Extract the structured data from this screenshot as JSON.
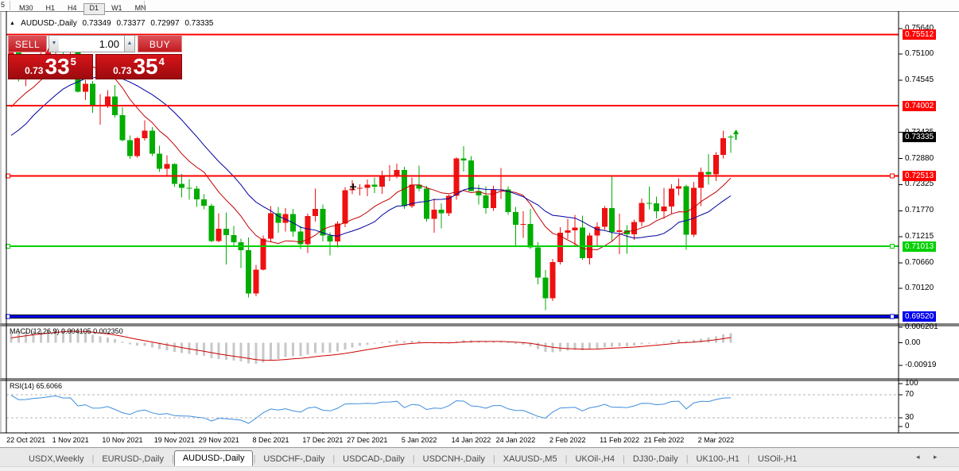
{
  "toolbar": {
    "partial_button": "5",
    "timeframes": [
      "M30",
      "H1",
      "H4",
      "D1",
      "W1",
      "MN"
    ],
    "active_timeframe": "D1"
  },
  "icons": {
    "collapse": "▲",
    "spin_down": "▼",
    "spin_up": "▲",
    "tab_scroll_left": "◂",
    "tab_scroll_right": "▸"
  },
  "chart_header": {
    "symbol": "AUDUSD-,Daily",
    "open": "0.73349",
    "high": "0.73377",
    "low": "0.72997",
    "close": "0.73335"
  },
  "trade_panel": {
    "sell_label": "SELL",
    "buy_label": "BUY",
    "volume": "1.00",
    "bid": "0.73335",
    "ask": "0.73354",
    "bid_small": "0.73",
    "bid_big": "33",
    "bid_sup": "5",
    "ask_small": "0.73",
    "ask_big": "35",
    "ask_sup": "4"
  },
  "price_axis": {
    "ticks": [
      "0.75640",
      "0.75100",
      "0.74545",
      "0.73435",
      "0.72880",
      "0.72325",
      "0.71770",
      "0.71215",
      "0.70660",
      "0.70120"
    ],
    "current_price": "0.73335",
    "current_price_bg": "#000000"
  },
  "macd_pane": {
    "label": "MACD(12,26,9)",
    "value_main": "0.004105",
    "value_signal": "0.002350",
    "axis": [
      "0.006201",
      "0.00",
      "-0.00919"
    ]
  },
  "rsi_pane": {
    "label": "RSI(14)",
    "value": "65.6066",
    "axis": [
      "100",
      "70",
      "30",
      "0"
    ],
    "levels": [
      70,
      30
    ]
  },
  "chart_data": {
    "type": "candlestick",
    "symbol": "AUDUSD",
    "timeframe": "Daily",
    "ylim": [
      0.6952,
      0.7564
    ],
    "colors": {
      "up_candle": "#ee1111",
      "down_candle": "#00ad00",
      "ma_fast": "#c00000",
      "ma_slow": "#0000a0",
      "macd_histogram": "#c8c8c8",
      "macd_signal": "#cc0000",
      "rsi_line": "#3f8edc"
    },
    "hlines": [
      {
        "price": 0.75512,
        "label": "0.75512",
        "color": "#ff0000",
        "thick": false,
        "handles": false
      },
      {
        "price": 0.74002,
        "label": "0.74002",
        "color": "#ff0000",
        "thick": false,
        "handles": false
      },
      {
        "price": 0.72513,
        "label": "0.72513",
        "color": "#ff0000",
        "thick": false,
        "handles": true
      },
      {
        "price": 0.71013,
        "label": "0.71013",
        "color": "#00d000",
        "thick": false,
        "handles": true
      },
      {
        "price": 0.6952,
        "label": "0.69520",
        "color": "#0000ee",
        "thick": true,
        "handles": true
      }
    ],
    "date_ticks": {
      "labels": [
        "22 Oct 2021",
        "1 Nov 2021",
        "10 Nov 2021",
        "19 Nov 2021",
        "29 Nov 2021",
        "8 Dec 2021",
        "17 Dec 2021",
        "27 Dec 2021",
        "5 Jan 2022",
        "14 Jan 2022",
        "24 Jan 2022",
        "2 Feb 2022",
        "11 Feb 2022",
        "21 Feb 2022",
        "2 Mar 2022"
      ],
      "candle_index": [
        2,
        8,
        15,
        22,
        28,
        35,
        42,
        48,
        55,
        62,
        68,
        75,
        82,
        88,
        95
      ]
    },
    "markers": [
      {
        "type": "arrow-up",
        "x_index": 97.7,
        "price": 0.7338,
        "color": "#00ad00"
      },
      {
        "type": "cross",
        "x_index": 46.1,
        "price": 0.7228,
        "color": "#000000"
      }
    ],
    "pre_history_closes_estimated": [
      0.734,
      0.7358,
      0.737,
      0.7355,
      0.733,
      0.73,
      0.7268,
      0.724,
      0.7215,
      0.719,
      0.7168,
      0.7145,
      0.7125,
      0.715,
      0.718,
      0.721,
      0.7245,
      0.728,
      0.731,
      0.734,
      0.7367,
      0.74,
      0.743,
      0.7453,
      0.7442,
      0.7433,
      0.741,
      0.7384,
      0.7369,
      0.7346,
      0.7356,
      0.7323,
      0.7345,
      0.7312,
      0.7268,
      0.7248,
      0.7264,
      0.7225,
      0.717,
      0.723,
      0.7261,
      0.7288,
      0.729,
      0.7362,
      0.7311,
      0.7322,
      0.7373,
      0.735,
      0.7378,
      0.7418,
      0.742,
      0.7414,
      0.7474
    ],
    "candles": [
      [
        "2021-10-20",
        0.7478,
        0.7546,
        0.7472,
        0.7516
      ],
      [
        "2021-10-21",
        0.7516,
        0.754,
        0.7452,
        0.7466
      ],
      [
        "2021-10-22",
        0.7466,
        0.7492,
        0.7442,
        0.7468
      ],
      [
        "2021-10-25",
        0.7468,
        0.7507,
        0.746,
        0.7489
      ],
      [
        "2021-10-26",
        0.7489,
        0.7536,
        0.7482,
        0.75
      ],
      [
        "2021-10-27",
        0.75,
        0.7522,
        0.7487,
        0.7518
      ],
      [
        "2021-10-28",
        0.7518,
        0.7545,
        0.75,
        0.7539
      ],
      [
        "2021-10-29",
        0.7539,
        0.7541,
        0.7496,
        0.7518
      ],
      [
        "2021-11-01",
        0.7518,
        0.7535,
        0.7492,
        0.7521
      ],
      [
        "2021-11-02",
        0.7521,
        0.7527,
        0.7428,
        0.743
      ],
      [
        "2021-11-03",
        0.743,
        0.7455,
        0.7412,
        0.7447
      ],
      [
        "2021-11-04",
        0.7447,
        0.7453,
        0.7385,
        0.74
      ],
      [
        "2021-11-05",
        0.74,
        0.7425,
        0.736,
        0.7402
      ],
      [
        "2021-11-08",
        0.7402,
        0.7433,
        0.7395,
        0.742
      ],
      [
        "2021-11-09",
        0.742,
        0.7444,
        0.7375,
        0.738
      ],
      [
        "2021-11-10",
        0.738,
        0.7397,
        0.7324,
        0.7327
      ],
      [
        "2021-11-11",
        0.7327,
        0.7337,
        0.7287,
        0.7293
      ],
      [
        "2021-11-12",
        0.7293,
        0.7334,
        0.729,
        0.7331
      ],
      [
        "2021-11-15",
        0.7331,
        0.7369,
        0.7326,
        0.7347
      ],
      [
        "2021-11-16",
        0.7347,
        0.7355,
        0.7293,
        0.7298
      ],
      [
        "2021-11-17",
        0.7298,
        0.7315,
        0.7259,
        0.7266
      ],
      [
        "2021-11-18",
        0.7266,
        0.7295,
        0.7252,
        0.7276
      ],
      [
        "2021-11-19",
        0.7276,
        0.7278,
        0.7227,
        0.7234
      ],
      [
        "2021-11-22",
        0.7234,
        0.7255,
        0.7205,
        0.7226
      ],
      [
        "2021-11-23",
        0.7226,
        0.7244,
        0.72,
        0.7224
      ],
      [
        "2021-11-24",
        0.7224,
        0.723,
        0.7185,
        0.7201
      ],
      [
        "2021-11-25",
        0.7201,
        0.7212,
        0.718,
        0.7188
      ],
      [
        "2021-11-26",
        0.7188,
        0.7192,
        0.711,
        0.7113
      ],
      [
        "2021-11-29",
        0.7113,
        0.7172,
        0.711,
        0.7139
      ],
      [
        "2021-11-30",
        0.7139,
        0.7173,
        0.7063,
        0.7125
      ],
      [
        "2021-12-01",
        0.7125,
        0.7145,
        0.71,
        0.711
      ],
      [
        "2021-12-02",
        0.711,
        0.7118,
        0.7055,
        0.7093
      ],
      [
        "2021-12-03",
        0.7093,
        0.712,
        0.6993,
        0.7001
      ],
      [
        "2021-12-06",
        0.7001,
        0.7062,
        0.6995,
        0.7052
      ],
      [
        "2021-12-07",
        0.7052,
        0.7124,
        0.705,
        0.7118
      ],
      [
        "2021-12-08",
        0.7118,
        0.7187,
        0.711,
        0.7172
      ],
      [
        "2021-12-09",
        0.7172,
        0.7185,
        0.713,
        0.7151
      ],
      [
        "2021-12-10",
        0.7151,
        0.7183,
        0.7133,
        0.717
      ],
      [
        "2021-12-13",
        0.717,
        0.7181,
        0.7122,
        0.7133
      ],
      [
        "2021-12-14",
        0.7133,
        0.7145,
        0.7096,
        0.7106
      ],
      [
        "2021-12-15",
        0.7106,
        0.7171,
        0.7087,
        0.7166
      ],
      [
        "2021-12-16",
        0.7166,
        0.7224,
        0.7154,
        0.7181
      ],
      [
        "2021-12-17",
        0.7181,
        0.719,
        0.7112,
        0.7124
      ],
      [
        "2021-12-20",
        0.7124,
        0.7131,
        0.7082,
        0.7112
      ],
      [
        "2021-12-21",
        0.7112,
        0.7155,
        0.7099,
        0.715
      ],
      [
        "2021-12-22",
        0.715,
        0.7227,
        0.7142,
        0.7221
      ],
      [
        "2021-12-23",
        0.7221,
        0.7242,
        0.7212,
        0.7224
      ],
      [
        "2021-12-24",
        0.7224,
        0.7233,
        0.721,
        0.7226
      ],
      [
        "2021-12-27",
        0.7226,
        0.7243,
        0.7208,
        0.7232
      ],
      [
        "2021-12-28",
        0.7232,
        0.7248,
        0.7215,
        0.7228
      ],
      [
        "2021-12-29",
        0.7228,
        0.7262,
        0.7213,
        0.7251
      ],
      [
        "2021-12-30",
        0.7251,
        0.7274,
        0.724,
        0.7253
      ],
      [
        "2021-12-31",
        0.7253,
        0.7277,
        0.7246,
        0.7264
      ],
      [
        "2022-01-03",
        0.7264,
        0.727,
        0.7181,
        0.7187
      ],
      [
        "2022-01-04",
        0.7187,
        0.7248,
        0.7183,
        0.7232
      ],
      [
        "2022-01-05",
        0.7232,
        0.7273,
        0.7218,
        0.7224
      ],
      [
        "2022-01-06",
        0.7224,
        0.723,
        0.7154,
        0.716
      ],
      [
        "2022-01-07",
        0.716,
        0.7203,
        0.713,
        0.7179
      ],
      [
        "2022-01-10",
        0.7179,
        0.7193,
        0.714,
        0.7172
      ],
      [
        "2022-01-11",
        0.7172,
        0.7211,
        0.7166,
        0.7209
      ],
      [
        "2022-01-12",
        0.7209,
        0.7291,
        0.72,
        0.7288
      ],
      [
        "2022-01-13",
        0.7288,
        0.7314,
        0.726,
        0.7284
      ],
      [
        "2022-01-14",
        0.7284,
        0.7293,
        0.7218,
        0.7219
      ],
      [
        "2022-01-17",
        0.7219,
        0.7232,
        0.719,
        0.721
      ],
      [
        "2022-01-18",
        0.721,
        0.7229,
        0.7171,
        0.7183
      ],
      [
        "2022-01-19",
        0.7183,
        0.723,
        0.7177,
        0.7222
      ],
      [
        "2022-01-20",
        0.7222,
        0.7268,
        0.7202,
        0.7222
      ],
      [
        "2022-01-21",
        0.7222,
        0.7229,
        0.7168,
        0.7174
      ],
      [
        "2022-01-24",
        0.7174,
        0.7185,
        0.71,
        0.7147
      ],
      [
        "2022-01-25",
        0.7147,
        0.7176,
        0.7119,
        0.7149
      ],
      [
        "2022-01-26",
        0.7149,
        0.7181,
        0.7096,
        0.7099
      ],
      [
        "2022-01-27",
        0.7099,
        0.711,
        0.7021,
        0.7035
      ],
      [
        "2022-01-28",
        0.7035,
        0.7051,
        0.6966,
        0.6991
      ],
      [
        "2022-01-31",
        0.6991,
        0.7075,
        0.6985,
        0.7068
      ],
      [
        "2022-02-01",
        0.7068,
        0.7142,
        0.7063,
        0.713
      ],
      [
        "2022-02-02",
        0.713,
        0.716,
        0.7117,
        0.7135
      ],
      [
        "2022-02-03",
        0.7135,
        0.7168,
        0.71,
        0.7141
      ],
      [
        "2022-02-04",
        0.7141,
        0.7167,
        0.7073,
        0.7076
      ],
      [
        "2022-02-07",
        0.7076,
        0.713,
        0.7063,
        0.7124
      ],
      [
        "2022-02-08",
        0.7124,
        0.7152,
        0.71,
        0.7143
      ],
      [
        "2022-02-09",
        0.7143,
        0.7187,
        0.7136,
        0.7183
      ],
      [
        "2022-02-10",
        0.7183,
        0.7249,
        0.7112,
        0.7132
      ],
      [
        "2022-02-11",
        0.7132,
        0.7171,
        0.7085,
        0.7135
      ],
      [
        "2022-02-14",
        0.7135,
        0.7146,
        0.7086,
        0.7127
      ],
      [
        "2022-02-15",
        0.7127,
        0.7158,
        0.7115,
        0.7153
      ],
      [
        "2022-02-16",
        0.7153,
        0.7203,
        0.7144,
        0.7194
      ],
      [
        "2022-02-17",
        0.7194,
        0.7228,
        0.718,
        0.7193
      ],
      [
        "2022-02-18",
        0.7193,
        0.7207,
        0.7161,
        0.7176
      ],
      [
        "2022-02-21",
        0.7176,
        0.7226,
        0.716,
        0.7186
      ],
      [
        "2022-02-22",
        0.7186,
        0.7233,
        0.717,
        0.7224
      ],
      [
        "2022-02-23",
        0.7224,
        0.7246,
        0.721,
        0.7229
      ],
      [
        "2022-02-24",
        0.7229,
        0.7232,
        0.7094,
        0.7126
      ],
      [
        "2022-02-25",
        0.7126,
        0.7238,
        0.7121,
        0.7226
      ],
      [
        "2022-02-28",
        0.7226,
        0.7269,
        0.7187,
        0.7259
      ],
      [
        "2022-03-01",
        0.7259,
        0.7297,
        0.7232,
        0.7254
      ],
      [
        "2022-03-02",
        0.7254,
        0.7302,
        0.724,
        0.7296
      ],
      [
        "2022-03-03",
        0.7296,
        0.7347,
        0.7288,
        0.7331
      ],
      [
        "2022-03-04",
        0.73349,
        0.73377,
        0.72997,
        0.73335
      ]
    ]
  },
  "tabs": {
    "items": [
      {
        "label": "USDX,Weekly",
        "active": false
      },
      {
        "label": "EURUSD-,Daily",
        "active": false
      },
      {
        "label": "AUDUSD-,Daily",
        "active": true
      },
      {
        "label": "USDCHF-,Daily",
        "active": false
      },
      {
        "label": "USDCAD-,Daily",
        "active": false
      },
      {
        "label": "USDCNH-,Daily",
        "active": false
      },
      {
        "label": "XAUUSD-,M5",
        "active": false
      },
      {
        "label": "UKOil-,H4",
        "active": false
      },
      {
        "label": "DJ30-,Daily",
        "active": false
      },
      {
        "label": "UK100-,H1",
        "active": false
      },
      {
        "label": "USOil-,H1",
        "active": false
      }
    ]
  }
}
